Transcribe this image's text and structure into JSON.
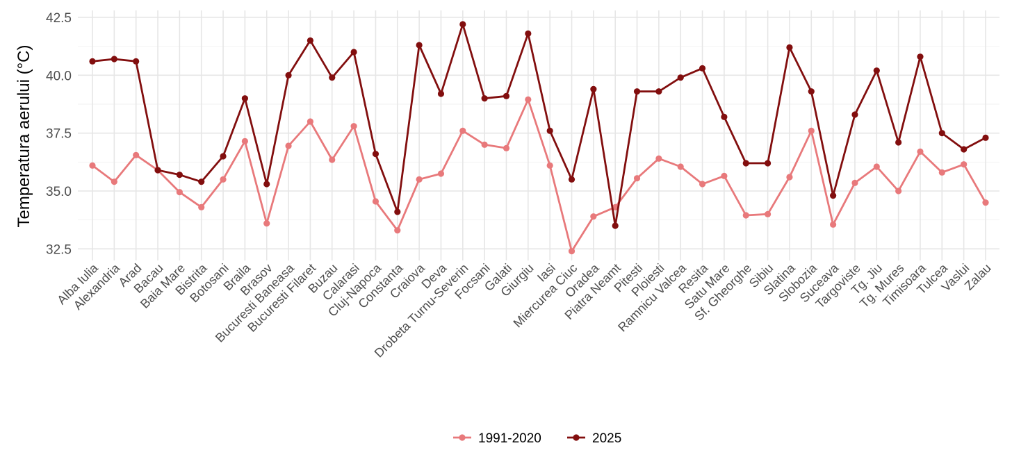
{
  "chart_data": {
    "type": "line",
    "title": "",
    "xlabel": "",
    "ylabel": "Temperatura aerului (°C)",
    "ylim": [
      32.0,
      42.8
    ],
    "yticks": [
      "32.5",
      "35.0",
      "37.5",
      "40.0",
      "42.5"
    ],
    "grid": true,
    "legend_position": "bottom",
    "categories": [
      "Alba Iulia",
      "Alexandria",
      "Arad",
      "Bacau",
      "Baia Mare",
      "Bistrita",
      "Botosani",
      "Braila",
      "Brasov",
      "Bucuresti Baneasa",
      "Bucuresti Filaret",
      "Buzau",
      "Calarasi",
      "Cluj-Napoca",
      "Constanta",
      "Craiova",
      "Deva",
      "Drobeta Turnu-Severin",
      "Focsani",
      "Galati",
      "Giurgiu",
      "Iasi",
      "Miercurea Ciuc",
      "Oradea",
      "Piatra Neamt",
      "Pitesti",
      "Ploiesti",
      "Ramnicu Valcea",
      "Resita",
      "Satu Mare",
      "Sf. Gheorghe",
      "Sibiu",
      "Slatina",
      "Slobozia",
      "Suceava",
      "Targoviste",
      "Tg. Jiu",
      "Tg. Mures",
      "Timisoara",
      "Tulcea",
      "Vaslui",
      "Zalau"
    ],
    "series": [
      {
        "name": "1991-2020",
        "color": "#e8797b",
        "values": [
          36.1,
          35.4,
          36.55,
          35.9,
          34.95,
          34.3,
          35.5,
          37.15,
          33.6,
          36.95,
          38.0,
          36.35,
          37.8,
          34.55,
          33.3,
          35.5,
          35.75,
          37.6,
          37.0,
          36.85,
          38.95,
          36.1,
          32.4,
          33.9,
          34.3,
          35.55,
          36.4,
          36.05,
          35.3,
          35.65,
          33.95,
          34.0,
          35.6,
          37.6,
          33.55,
          35.35,
          36.05,
          35.0,
          36.7,
          35.8,
          36.15,
          34.5
        ]
      },
      {
        "name": "2025",
        "color": "#820e0e",
        "values": [
          40.6,
          40.7,
          40.6,
          35.9,
          35.7,
          35.4,
          36.5,
          39.0,
          35.3,
          40.0,
          41.5,
          39.9,
          41.0,
          36.6,
          34.1,
          41.3,
          39.2,
          42.2,
          39.0,
          39.1,
          41.8,
          37.6,
          35.5,
          39.4,
          33.5,
          39.3,
          39.3,
          39.9,
          40.3,
          38.2,
          36.2,
          36.2,
          41.2,
          39.3,
          34.8,
          38.3,
          40.2,
          37.1,
          40.8,
          37.5,
          36.8,
          37.3
        ]
      }
    ]
  }
}
